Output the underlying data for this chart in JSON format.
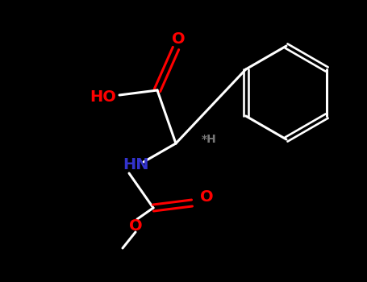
{
  "background": "#000000",
  "bond_color": "#ffffff",
  "bond_width": 2.2,
  "atom_colors": {
    "O": "#ff0000",
    "N": "#3333cc",
    "C": "#ffffff",
    "H": "#888888"
  },
  "figsize": [
    4.55,
    3.5
  ],
  "dpi": 100,
  "xlim": [
    0,
    455
  ],
  "ylim": [
    0,
    350
  ]
}
